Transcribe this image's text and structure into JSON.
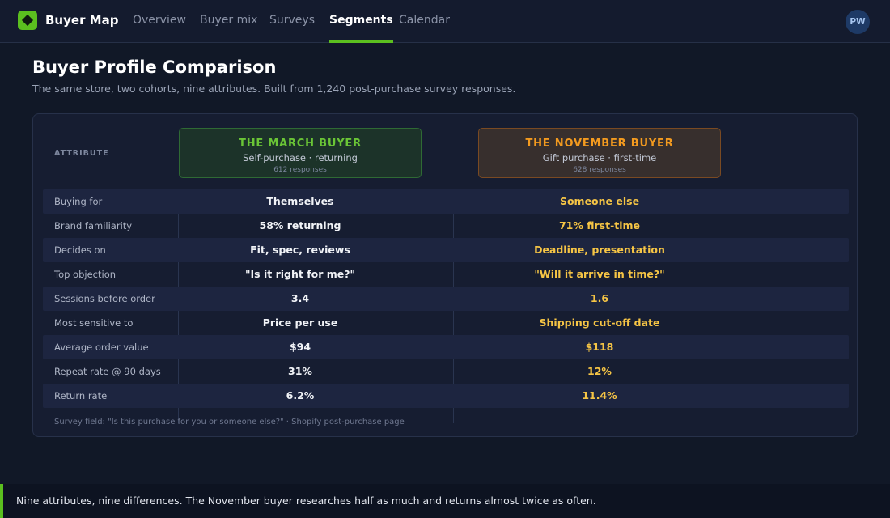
{
  "app": {
    "name": "Buyer Map",
    "logo_icon": "diamond-logo-icon",
    "accent_color": "#5bbf1f",
    "avatar_initials": "PW"
  },
  "nav": {
    "tabs": [
      {
        "label": "Overview",
        "active": false
      },
      {
        "label": "Buyer mix",
        "active": false
      },
      {
        "label": "Surveys",
        "active": false
      },
      {
        "label": "Segments",
        "active": true
      },
      {
        "label": "Calendar",
        "active": false
      }
    ]
  },
  "header": {
    "title": "Buyer Profile Comparison",
    "subtitle": "The same store, two cohorts, nine attributes. Built from 1,240 post-purchase survey responses."
  },
  "table": {
    "attribute_header": "ATTRIBUTE",
    "cohorts": [
      {
        "name": "THE MARCH BUYER",
        "description": "Self-purchase · returning",
        "count": "612 responses",
        "color": "#6ac536"
      },
      {
        "name": "THE NOVEMBER BUYER",
        "description": "Gift purchase · first-time",
        "count": "628 responses",
        "color": "#f49b1f"
      }
    ],
    "rows": [
      {
        "attribute": "Buying for",
        "march": "Themselves",
        "november": "Someone else"
      },
      {
        "attribute": "Brand familiarity",
        "march": "58% returning",
        "november": "71% first-time"
      },
      {
        "attribute": "Decides on",
        "march": "Fit, spec, reviews",
        "november": "Deadline, presentation"
      },
      {
        "attribute": "Top objection",
        "march": "\"Is it right for me?\"",
        "november": "\"Will it arrive in time?\""
      },
      {
        "attribute": "Sessions before order",
        "march": "3.4",
        "november": "1.6"
      },
      {
        "attribute": "Most sensitive to",
        "march": "Price per use",
        "november": "Shipping cut-off date"
      },
      {
        "attribute": "Average order value",
        "march": "$94",
        "november": "$118"
      },
      {
        "attribute": "Repeat rate @ 90 days",
        "march": "31%",
        "november": "12%"
      },
      {
        "attribute": "Return rate",
        "march": "6.2%",
        "november": "11.4%"
      }
    ],
    "footnote": "Survey field: \"Is this purchase for you or someone else?\" · Shopify post-purchase page"
  },
  "banner": {
    "text": "Nine attributes, nine differences. The November buyer researches half as much and returns almost twice as often."
  }
}
